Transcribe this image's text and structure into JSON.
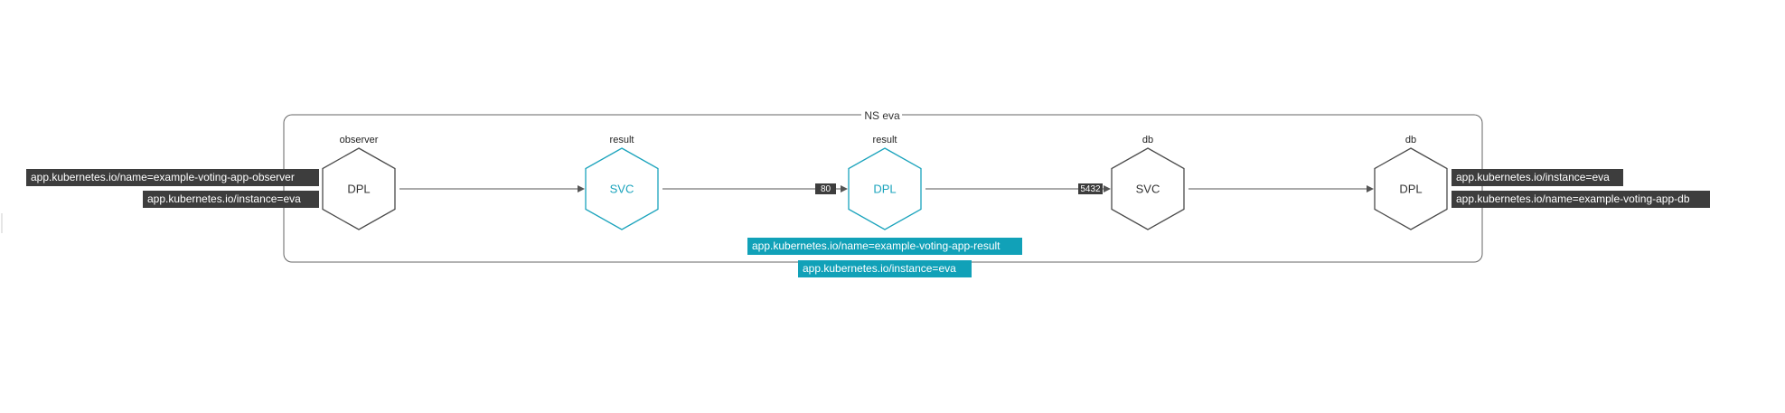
{
  "namespace": {
    "label": "NS eva"
  },
  "nodes": [
    {
      "id": "observer-dpl",
      "type": "DPL",
      "name": "observer",
      "highlight": false
    },
    {
      "id": "result-svc",
      "type": "SVC",
      "name": "result",
      "highlight": true
    },
    {
      "id": "result-dpl",
      "type": "DPL",
      "name": "result",
      "highlight": true
    },
    {
      "id": "db-svc",
      "type": "SVC",
      "name": "db",
      "highlight": false
    },
    {
      "id": "db-dpl",
      "type": "DPL",
      "name": "db",
      "highlight": false
    }
  ],
  "edges": [
    {
      "from": "observer-dpl",
      "to": "result-svc",
      "port": ""
    },
    {
      "from": "result-svc",
      "to": "result-dpl",
      "port": "80"
    },
    {
      "from": "result-dpl",
      "to": "db-svc",
      "port": "5432"
    },
    {
      "from": "db-svc",
      "to": "db-dpl",
      "port": ""
    }
  ],
  "labels": {
    "observer": [
      "app.kubernetes.io/name=example-voting-app-observer",
      "app.kubernetes.io/instance=eva"
    ],
    "result": [
      "app.kubernetes.io/name=example-voting-app-result",
      "app.kubernetes.io/instance=eva"
    ],
    "db": [
      "app.kubernetes.io/instance=eva",
      "app.kubernetes.io/name=example-voting-app-db"
    ]
  },
  "colors": {
    "teal": "#1aa3bc",
    "tag_dark": "#3d3d3d",
    "stroke_dark": "#4a4a4a"
  }
}
